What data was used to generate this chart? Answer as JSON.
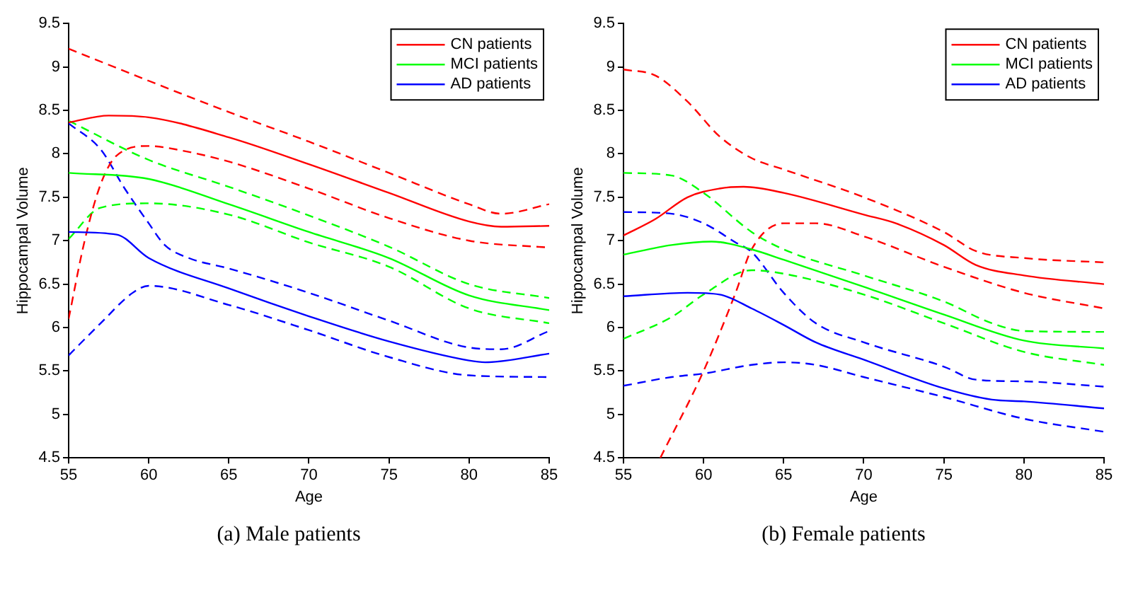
{
  "chart_data": [
    {
      "type": "line",
      "xlabel": "Age",
      "ylabel": "Hippocampal Volume",
      "annotations": [
        "(a) Male patients"
      ],
      "xlim": [
        55,
        85
      ],
      "xticks": [
        55,
        60,
        65,
        70,
        75,
        80,
        85
      ],
      "ylim": [
        4.5,
        9.5
      ],
      "yticks": [
        4.5,
        5,
        5.5,
        6,
        6.5,
        7,
        7.5,
        8,
        8.5,
        9,
        9.5
      ],
      "grid": false,
      "legend": "top right",
      "marker": "none",
      "series": [
        {
          "name": "CN patients",
          "color": "#ff0000",
          "line_style": "solid",
          "x": [
            55,
            57.5,
            60,
            65,
            70,
            75,
            80,
            82,
            85
          ],
          "values": [
            8.36,
            8.44,
            8.42,
            8.19,
            7.88,
            7.55,
            7.22,
            7.16,
            7.17
          ]
        },
        {
          "name": "MCI patients",
          "color": "#00ff00",
          "line_style": "solid",
          "x": [
            55,
            60,
            65,
            70,
            75,
            80,
            85
          ],
          "values": [
            7.78,
            7.71,
            7.42,
            7.1,
            6.8,
            6.37,
            6.2
          ]
        },
        {
          "name": "AD patients",
          "color": "#0000ff",
          "line_style": "solid",
          "x": [
            55,
            58,
            60,
            65,
            70,
            75,
            80,
            81,
            85
          ],
          "values": [
            7.1,
            7.07,
            6.8,
            6.45,
            6.13,
            5.84,
            5.62,
            5.6,
            5.7
          ]
        },
        {
          "color": "#ff0000",
          "line_style": "dashed",
          "x": [
            55,
            60,
            65,
            70,
            75,
            80,
            82,
            85
          ],
          "values": [
            9.21,
            8.84,
            8.48,
            8.14,
            7.78,
            7.42,
            7.31,
            7.42
          ]
        },
        {
          "color": "#ff0000",
          "line_style": "dashed",
          "x": [
            55,
            56,
            57,
            58,
            60,
            62,
            65,
            70,
            75,
            80,
            85
          ],
          "values": [
            6.1,
            7.0,
            7.65,
            7.98,
            8.09,
            8.04,
            7.91,
            7.6,
            7.26,
            7.0,
            6.92
          ]
        },
        {
          "color": "#00ff00",
          "line_style": "dashed",
          "x": [
            55,
            60,
            65,
            70,
            75,
            80,
            85
          ],
          "values": [
            8.38,
            7.93,
            7.62,
            7.29,
            6.93,
            6.5,
            6.34
          ]
        },
        {
          "color": "#00ff00",
          "line_style": "dashed",
          "x": [
            55,
            57,
            60,
            65,
            70,
            75,
            80,
            85
          ],
          "values": [
            7.02,
            7.38,
            7.43,
            7.3,
            6.98,
            6.7,
            6.22,
            6.05
          ]
        },
        {
          "color": "#0000ff",
          "line_style": "dashed",
          "x": [
            55,
            57,
            58.5,
            60,
            61,
            62.5,
            65,
            70,
            75,
            80,
            82,
            85
          ],
          "values": [
            8.35,
            8.05,
            7.6,
            7.2,
            6.95,
            6.8,
            6.68,
            6.4,
            6.08,
            5.77,
            5.75,
            5.96
          ]
        },
        {
          "color": "#0000ff",
          "line_style": "dashed",
          "x": [
            55,
            57,
            59,
            60,
            65,
            70,
            75,
            80,
            85
          ],
          "values": [
            5.68,
            6.05,
            6.4,
            6.48,
            6.26,
            5.97,
            5.66,
            5.45,
            5.43
          ]
        }
      ]
    },
    {
      "type": "line",
      "xlabel": "Age",
      "ylabel": "Hippocampal Volume",
      "annotations": [
        "(b) Female patients"
      ],
      "xlim": [
        55,
        85
      ],
      "xticks": [
        55,
        60,
        65,
        70,
        75,
        80,
        85
      ],
      "ylim": [
        4.5,
        9.5
      ],
      "yticks": [
        4.5,
        5,
        5.5,
        6,
        6.5,
        7,
        7.5,
        8,
        8.5,
        9,
        9.5
      ],
      "grid": false,
      "legend": "top right",
      "marker": "none",
      "series": [
        {
          "name": "CN patients",
          "color": "#ff0000",
          "line_style": "solid",
          "x": [
            55,
            57,
            59,
            61,
            62.5,
            65,
            70,
            72,
            75,
            77,
            80,
            85
          ],
          "values": [
            7.06,
            7.25,
            7.5,
            7.6,
            7.62,
            7.55,
            7.3,
            7.2,
            6.95,
            6.72,
            6.6,
            6.5
          ]
        },
        {
          "name": "MCI patients",
          "color": "#00ff00",
          "line_style": "solid",
          "x": [
            55,
            58,
            60.5,
            63,
            65,
            70,
            75,
            80,
            85
          ],
          "values": [
            6.84,
            6.95,
            6.99,
            6.9,
            6.78,
            6.47,
            6.15,
            5.85,
            5.76
          ]
        },
        {
          "name": "AD patients",
          "color": "#0000ff",
          "line_style": "solid",
          "x": [
            55,
            59,
            61,
            63,
            65,
            67,
            70,
            75,
            78,
            80,
            85
          ],
          "values": [
            6.36,
            6.4,
            6.38,
            6.22,
            6.03,
            5.83,
            5.63,
            5.3,
            5.17,
            5.15,
            5.07
          ]
        },
        {
          "color": "#ff0000",
          "line_style": "dashed",
          "x": [
            55,
            57,
            59,
            61,
            63,
            65,
            70,
            75,
            77,
            80,
            85
          ],
          "values": [
            8.97,
            8.9,
            8.6,
            8.2,
            7.95,
            7.82,
            7.5,
            7.1,
            6.88,
            6.8,
            6.75
          ]
        },
        {
          "color": "#ff0000",
          "line_style": "dashed",
          "x": [
            57.3,
            60,
            62,
            63,
            65,
            67,
            70,
            75,
            80,
            85
          ],
          "values": [
            4.5,
            5.5,
            6.4,
            6.9,
            7.2,
            7.2,
            7.05,
            6.7,
            6.4,
            6.22
          ]
        },
        {
          "color": "#00ff00",
          "line_style": "dashed",
          "x": [
            55,
            58,
            60,
            63,
            65,
            70,
            75,
            78,
            80,
            85
          ],
          "values": [
            7.78,
            7.75,
            7.55,
            7.1,
            6.9,
            6.6,
            6.3,
            6.05,
            5.96,
            5.95
          ]
        },
        {
          "color": "#00ff00",
          "line_style": "dashed",
          "x": [
            55,
            58,
            60,
            63,
            65,
            70,
            75,
            80,
            85
          ],
          "values": [
            5.87,
            6.12,
            6.38,
            6.66,
            6.62,
            6.38,
            6.05,
            5.72,
            5.57
          ]
        },
        {
          "color": "#0000ff",
          "line_style": "dashed",
          "x": [
            55,
            58,
            60,
            62,
            63,
            65,
            67,
            70,
            75,
            77,
            80,
            85
          ],
          "values": [
            7.33,
            7.31,
            7.2,
            6.98,
            6.87,
            6.4,
            6.05,
            5.83,
            5.55,
            5.4,
            5.38,
            5.32
          ]
        },
        {
          "color": "#0000ff",
          "line_style": "dashed",
          "x": [
            55,
            58,
            60,
            63,
            65,
            67,
            70,
            75,
            80,
            85
          ],
          "values": [
            5.33,
            5.43,
            5.47,
            5.57,
            5.6,
            5.57,
            5.43,
            5.2,
            4.95,
            4.8
          ]
        }
      ]
    }
  ]
}
